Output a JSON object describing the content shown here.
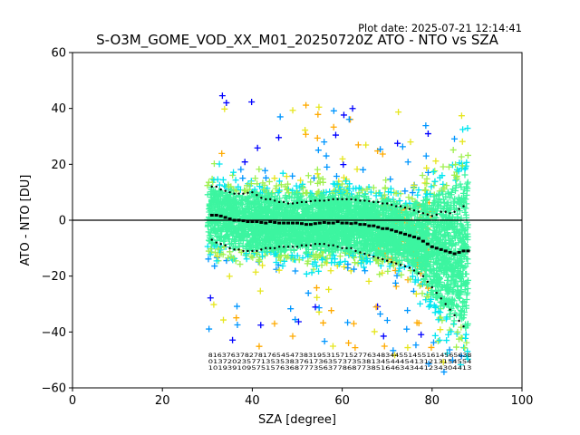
{
  "chart_data": {
    "type": "scatter",
    "title": "S-O3M_GOME_VOD_XX_M01_20250720Z ATO - NTO vs SZA",
    "subtitle": "Plot date: 2025-07-21 12:14:41",
    "xlabel": "SZA [degree]",
    "ylabel": "ATO - NTO [DU]",
    "xlim": [
      0,
      100
    ],
    "ylim": [
      -60,
      60
    ],
    "xticks": [
      "0",
      "20",
      "40",
      "60",
      "80",
      "100"
    ],
    "yticks": [
      "60",
      "40",
      "20",
      "0",
      "−20",
      "−40",
      "−60"
    ],
    "grid": false,
    "legend": "none",
    "reference_line_y": 0,
    "scatter_extent": {
      "x_min": 30,
      "x_max": 88,
      "y_min": -60,
      "y_max": 58
    },
    "series": [
      {
        "marker": "plus",
        "color_scale": [
          "#0000ff",
          "#0096ff",
          "#00e6f0",
          "#3cf5a0",
          "#a0f050",
          "#e6e61e",
          "#ffaa00"
        ],
        "core_color": "#3cf5a0"
      },
      {
        "marker": "square",
        "color": "#000000",
        "x": [
          31,
          32,
          33,
          34,
          35,
          36,
          37,
          38,
          39,
          40,
          41,
          42,
          43,
          44,
          45,
          46,
          47,
          48,
          49,
          50,
          51,
          52,
          53,
          54,
          55,
          56,
          57,
          58,
          59,
          60,
          61,
          62,
          63,
          64,
          65,
          66,
          67,
          68,
          69,
          70,
          71,
          72,
          73,
          74,
          75,
          76,
          77,
          78,
          79,
          80,
          81,
          82,
          83,
          84,
          85,
          86,
          87,
          88
        ],
        "y": [
          1.8,
          1.8,
          1.5,
          1,
          0.5,
          0,
          0,
          -0.2,
          -0.5,
          -0.5,
          -0.5,
          -0.8,
          -1,
          -0.5,
          -0.8,
          -1,
          -1,
          -1,
          -1,
          -1,
          -1.2,
          -1.5,
          -1.5,
          -1.2,
          -1,
          -0.8,
          -1,
          -1,
          -0.5,
          -1,
          -1,
          -1.2,
          -1,
          -1.5,
          -1.5,
          -2,
          -2,
          -2.5,
          -3,
          -3,
          -3.5,
          -4,
          -4.5,
          -5,
          -5.5,
          -6,
          -6.5,
          -7.5,
          -8.5,
          -9.5,
          -10,
          -10.5,
          -11,
          -11.5,
          -12,
          -11.5,
          -11,
          -11
        ]
      },
      {
        "marker": "dot",
        "color": "#000000",
        "x": [
          31,
          32,
          33,
          34,
          35,
          36,
          37,
          38,
          39,
          40,
          41,
          42,
          43,
          44,
          45,
          46,
          47,
          48,
          49,
          50,
          51,
          52,
          53,
          54,
          55,
          56,
          57,
          58,
          59,
          60,
          61,
          62,
          63,
          64,
          65,
          66,
          67,
          68,
          69,
          70,
          71,
          72,
          73,
          74,
          75,
          76,
          77,
          78,
          79,
          80,
          81,
          82,
          83,
          84,
          85,
          86,
          87
        ],
        "y": [
          12,
          12,
          11,
          10.5,
          10,
          9.5,
          9.5,
          9.5,
          9.8,
          10,
          9,
          8,
          7.5,
          7.5,
          7,
          6.5,
          6.5,
          6,
          6,
          6.2,
          6.5,
          6.5,
          6.8,
          7,
          7,
          7,
          7.2,
          7.5,
          7.5,
          7.5,
          7.5,
          7.5,
          7.3,
          7,
          7,
          6.8,
          6.5,
          6.5,
          6,
          6,
          5.5,
          5,
          5,
          4.5,
          4,
          3.5,
          3,
          2.5,
          2,
          1.5,
          2,
          3,
          3,
          2.5,
          3,
          4,
          5
        ]
      },
      {
        "marker": "dot",
        "color": "#000000",
        "x": [
          31,
          32,
          33,
          34,
          35,
          36,
          37,
          38,
          39,
          40,
          41,
          42,
          43,
          44,
          45,
          46,
          47,
          48,
          49,
          50,
          51,
          52,
          53,
          54,
          55,
          56,
          57,
          58,
          59,
          60,
          61,
          62,
          63,
          64,
          65,
          66,
          67,
          68,
          69,
          70,
          71,
          72,
          73,
          74,
          75,
          76,
          77,
          78,
          79,
          80,
          81,
          82,
          83,
          84,
          85,
          86,
          87
        ],
        "y": [
          -7,
          -8,
          -8.5,
          -9,
          -10,
          -10.5,
          -10.5,
          -11,
          -11,
          -11,
          -11,
          -10.5,
          -10,
          -10,
          -10,
          -9.5,
          -9.5,
          -9.5,
          -9.5,
          -9.5,
          -9,
          -9,
          -9,
          -8.5,
          -8.5,
          -8.5,
          -9,
          -9,
          -9.5,
          -10,
          -10,
          -10,
          -11,
          -11.5,
          -12,
          -12.5,
          -13,
          -13.5,
          -14,
          -14.5,
          -15,
          -15.5,
          -16,
          -16.5,
          -17,
          -18,
          -19,
          -20,
          -22,
          -24,
          -26,
          -28,
          -30,
          -32,
          -34,
          -36,
          -38
        ]
      }
    ],
    "counts": {
      "x_start": 31,
      "x_end": 88,
      "rows": [
        "8163763782781765454738319531571527763483445514551614565638",
        "0137202357713535383761736357373538134544454131213154554",
        "1019391095751576368777356377868773851646343441234304413"
      ]
    }
  }
}
